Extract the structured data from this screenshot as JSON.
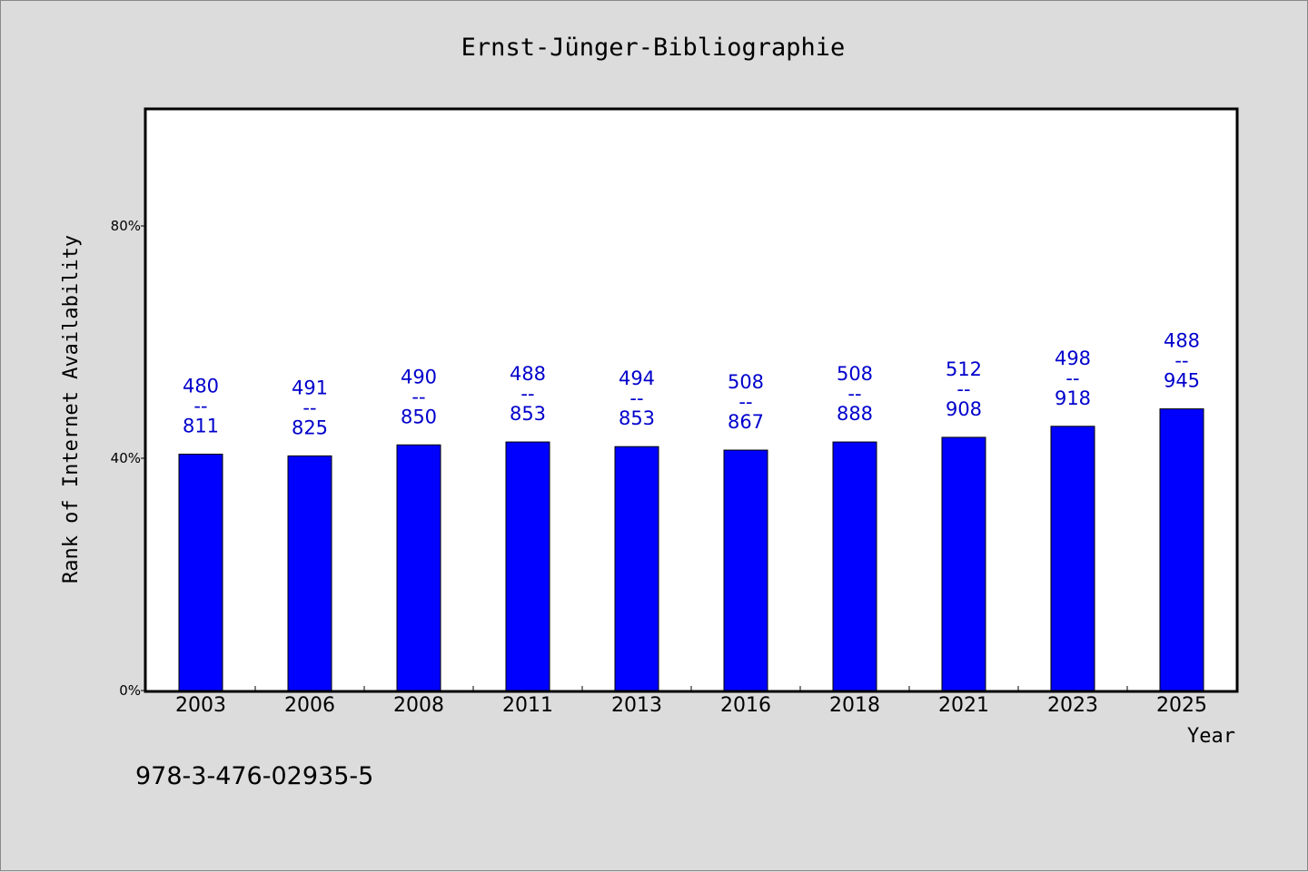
{
  "chart_data": {
    "type": "bar",
    "title": "Ernst-Jünger-Bibliographie",
    "xlabel": "Year",
    "ylabel": "Rank of Internet Availability",
    "categories": [
      "2003",
      "2006",
      "2008",
      "2011",
      "2013",
      "2016",
      "2018",
      "2021",
      "2023",
      "2025"
    ],
    "values": [
      40.7,
      40.4,
      42.3,
      42.8,
      42.0,
      41.4,
      42.8,
      43.6,
      45.5,
      48.5
    ],
    "annotations": [
      {
        "top": "480",
        "mid": "--",
        "bottom": "811"
      },
      {
        "top": "491",
        "mid": "--",
        "bottom": "825"
      },
      {
        "top": "490",
        "mid": "--",
        "bottom": "850"
      },
      {
        "top": "488",
        "mid": "--",
        "bottom": "853"
      },
      {
        "top": "494",
        "mid": "--",
        "bottom": "853"
      },
      {
        "top": "508",
        "mid": "--",
        "bottom": "867"
      },
      {
        "top": "508",
        "mid": "--",
        "bottom": "888"
      },
      {
        "top": "512",
        "mid": "--",
        "bottom": "908"
      },
      {
        "top": "498",
        "mid": "--",
        "bottom": "918"
      },
      {
        "top": "488",
        "mid": "--",
        "bottom": "945"
      }
    ],
    "ylim": [
      0,
      100
    ],
    "yticks": [
      {
        "value": 0,
        "label": "0%"
      },
      {
        "value": 40,
        "label": "40%"
      },
      {
        "value": 80,
        "label": "80%"
      }
    ],
    "grid": false,
    "bar_color": "#0000ff",
    "label_color": "#0000cc",
    "background": "#dcdcdc"
  },
  "footer": {
    "isbn": "978-3-476-02935-5"
  }
}
